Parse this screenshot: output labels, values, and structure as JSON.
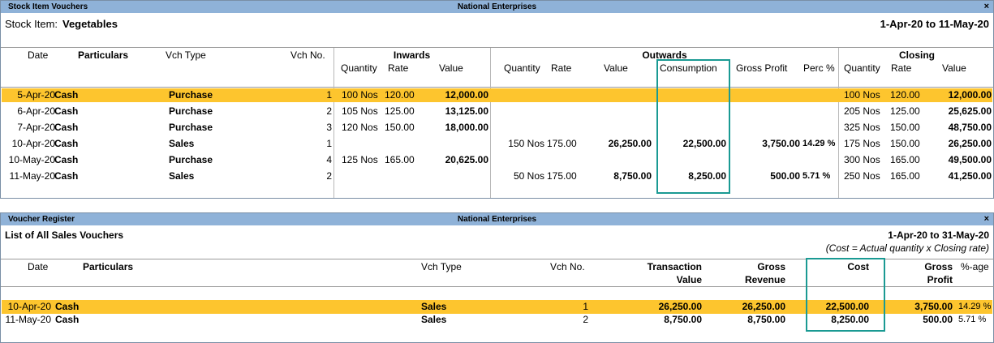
{
  "top_panel": {
    "title": "Stock Item Vouchers",
    "company": "National Enterprises",
    "close": "×",
    "stock_item_label": "Stock Item:",
    "stock_item_value": "Vegetables",
    "period": "1-Apr-20 to 11-May-20",
    "headers": {
      "date": "Date",
      "particulars": "Particulars",
      "vch_type": "Vch Type",
      "vch_no": "Vch No.",
      "inwards": "Inwards",
      "outwards": "Outwards",
      "closing": "Closing",
      "quantity": "Quantity",
      "rate": "Rate",
      "value": "Value",
      "consumption": "Consumption",
      "gross_profit": "Gross Profit",
      "perc": "Perc %"
    },
    "rows": [
      {
        "date": "5-Apr-20",
        "particulars": "Cash",
        "vch_type": "Purchase",
        "vch_no": "1",
        "in_qty": "100 Nos",
        "in_rate": "120.00",
        "in_value": "12,000.00",
        "out_qty": "",
        "out_rate": "",
        "out_value": "",
        "consumption": "",
        "gross_profit": "",
        "perc": "",
        "cl_qty": "100 Nos",
        "cl_rate": "120.00",
        "cl_value": "12,000.00"
      },
      {
        "date": "6-Apr-20",
        "particulars": "Cash",
        "vch_type": "Purchase",
        "vch_no": "2",
        "in_qty": "105 Nos",
        "in_rate": "125.00",
        "in_value": "13,125.00",
        "out_qty": "",
        "out_rate": "",
        "out_value": "",
        "consumption": "",
        "gross_profit": "",
        "perc": "",
        "cl_qty": "205 Nos",
        "cl_rate": "125.00",
        "cl_value": "25,625.00"
      },
      {
        "date": "7-Apr-20",
        "particulars": "Cash",
        "vch_type": "Purchase",
        "vch_no": "3",
        "in_qty": "120 Nos",
        "in_rate": "150.00",
        "in_value": "18,000.00",
        "out_qty": "",
        "out_rate": "",
        "out_value": "",
        "consumption": "",
        "gross_profit": "",
        "perc": "",
        "cl_qty": "325 Nos",
        "cl_rate": "150.00",
        "cl_value": "48,750.00"
      },
      {
        "date": "10-Apr-20",
        "particulars": "Cash",
        "vch_type": "Sales",
        "vch_no": "1",
        "in_qty": "",
        "in_rate": "",
        "in_value": "",
        "out_qty": "150 Nos",
        "out_rate": "175.00",
        "out_value": "26,250.00",
        "consumption": "22,500.00",
        "gross_profit": "3,750.00",
        "perc": "14.29 %",
        "cl_qty": "175 Nos",
        "cl_rate": "150.00",
        "cl_value": "26,250.00"
      },
      {
        "date": "10-May-20",
        "particulars": "Cash",
        "vch_type": "Purchase",
        "vch_no": "4",
        "in_qty": "125 Nos",
        "in_rate": "165.00",
        "in_value": "20,625.00",
        "out_qty": "",
        "out_rate": "",
        "out_value": "",
        "consumption": "",
        "gross_profit": "",
        "perc": "",
        "cl_qty": "300 Nos",
        "cl_rate": "165.00",
        "cl_value": "49,500.00"
      },
      {
        "date": "11-May-20",
        "particulars": "Cash",
        "vch_type": "Sales",
        "vch_no": "2",
        "in_qty": "",
        "in_rate": "",
        "in_value": "",
        "out_qty": "50 Nos",
        "out_rate": "175.00",
        "out_value": "8,750.00",
        "consumption": "8,250.00",
        "gross_profit": "500.00",
        "perc": "5.71 %",
        "cl_qty": "250 Nos",
        "cl_rate": "165.00",
        "cl_value": "41,250.00"
      }
    ]
  },
  "bottom_panel": {
    "title": "Voucher Register",
    "company": "National Enterprises",
    "close": "×",
    "subtitle": "List of All Sales Vouchers",
    "period": "1-Apr-20 to 31-May-20",
    "note": "(Cost = Actual quantity x Closing rate)",
    "headers": {
      "date": "Date",
      "particulars": "Particulars",
      "vch_type": "Vch Type",
      "vch_no": "Vch No.",
      "transaction": "Transaction",
      "value": "Value",
      "gross": "Gross",
      "revenue": "Revenue",
      "cost": "Cost",
      "gross2": "Gross",
      "profit": "Profit",
      "pct_age": "%-age"
    },
    "rows": [
      {
        "date": "10-Apr-20",
        "particulars": "Cash",
        "vch_type": "Sales",
        "vch_no": "1",
        "transaction_value": "26,250.00",
        "gross_revenue": "26,250.00",
        "cost": "22,500.00",
        "gross_profit": "3,750.00",
        "pct": "14.29 %"
      },
      {
        "date": "11-May-20",
        "particulars": "Cash",
        "vch_type": "Sales",
        "vch_no": "2",
        "transaction_value": "8,750.00",
        "gross_revenue": "8,750.00",
        "cost": "8,250.00",
        "gross_profit": "500.00",
        "pct": "5.71 %"
      }
    ]
  },
  "colors": {
    "selection": "#fdc52e",
    "titlebar": "#8fb2d8",
    "highlight_box": "#1a9a93"
  }
}
